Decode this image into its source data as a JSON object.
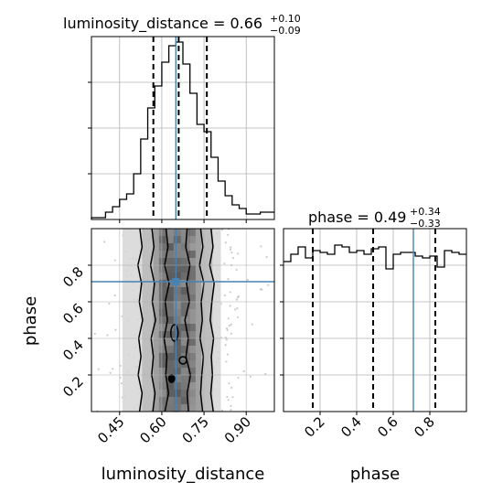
{
  "chart_data": [
    {
      "type": "histogram",
      "panel": "marginal-luminosity-distance",
      "title": {
        "main": "luminosity_distance = 0.66",
        "sup": "+0.10",
        "sub": "−0.09"
      },
      "xlim": [
        0.35,
        1.0
      ],
      "ylim": [
        0,
        1.0
      ],
      "quantiles": [
        0.57,
        0.66,
        0.76
      ],
      "truth": 0.65,
      "bin_edges": [
        0.35,
        0.375,
        0.4,
        0.425,
        0.45,
        0.475,
        0.5,
        0.525,
        0.55,
        0.575,
        0.6,
        0.625,
        0.65,
        0.675,
        0.7,
        0.725,
        0.75,
        0.775,
        0.8,
        0.825,
        0.85,
        0.875,
        0.9,
        0.925,
        0.95,
        0.975,
        1.0
      ],
      "counts": [
        0.01,
        0.01,
        0.04,
        0.07,
        0.11,
        0.14,
        0.25,
        0.44,
        0.61,
        0.73,
        0.86,
        0.95,
        0.97,
        0.85,
        0.69,
        0.52,
        0.48,
        0.34,
        0.21,
        0.13,
        0.08,
        0.06,
        0.03,
        0.03,
        0.04,
        0.04
      ]
    },
    {
      "type": "scatter",
      "panel": "joint-2d",
      "xlabel": "luminosity_distance",
      "ylabel": "phase",
      "xlim": [
        0.35,
        1.0
      ],
      "ylim": [
        0.0,
        1.0
      ],
      "xticks": [
        "0.45",
        "0.60",
        "0.75",
        "0.90"
      ],
      "yticks": [
        "0.2",
        "0.4",
        "0.6",
        "0.8"
      ],
      "truth": [
        0.65,
        0.71
      ],
      "density_columns": [
        0.47,
        0.56,
        0.61,
        0.65,
        0.7,
        0.74,
        0.8
      ],
      "contour_x": [
        [
          0.522,
          0.53,
          0.515,
          0.528,
          0.52,
          0.532,
          0.518,
          0.526,
          0.516,
          0.53,
          0.521
        ],
        [
          0.565,
          0.572,
          0.56,
          0.574,
          0.566,
          0.578,
          0.562,
          0.57,
          0.564,
          0.576,
          0.568
        ],
        [
          0.615,
          0.622,
          0.61,
          0.626,
          0.612,
          0.62,
          0.608,
          0.618,
          0.614,
          0.624,
          0.611
        ],
        [
          0.69,
          0.685,
          0.7,
          0.688,
          0.698,
          0.682,
          0.694,
          0.686,
          0.702,
          0.69,
          0.695
        ],
        [
          0.738,
          0.746,
          0.734,
          0.75,
          0.74,
          0.744,
          0.736,
          0.748,
          0.742,
          0.738,
          0.745
        ],
        [
          0.775,
          0.782,
          0.77,
          0.786,
          0.778,
          0.772,
          0.784,
          0.776,
          0.78,
          0.774,
          0.783
        ]
      ],
      "contour_y": [
        1.0,
        0.9,
        0.8,
        0.7,
        0.6,
        0.5,
        0.4,
        0.3,
        0.2,
        0.1,
        0.0
      ]
    },
    {
      "type": "histogram",
      "panel": "marginal-phase",
      "title": {
        "main": "phase = 0.49",
        "sup": "+0.34",
        "sub": "−0.33"
      },
      "xlabel": "phase",
      "xlim": [
        0.0,
        1.0
      ],
      "ylim": [
        0,
        1.0
      ],
      "xticks": [
        "0.2",
        "0.4",
        "0.6",
        "0.8"
      ],
      "quantiles": [
        0.16,
        0.49,
        0.83
      ],
      "truth": 0.71,
      "bin_edges": [
        0.0,
        0.04,
        0.08,
        0.12,
        0.16,
        0.2,
        0.24,
        0.28,
        0.32,
        0.36,
        0.4,
        0.44,
        0.48,
        0.52,
        0.56,
        0.6,
        0.64,
        0.68,
        0.72,
        0.76,
        0.8,
        0.84,
        0.88,
        0.92,
        0.96,
        1.0
      ],
      "counts": [
        0.82,
        0.86,
        0.9,
        0.84,
        0.88,
        0.87,
        0.86,
        0.91,
        0.9,
        0.87,
        0.88,
        0.86,
        0.89,
        0.9,
        0.78,
        0.86,
        0.87,
        0.87,
        0.85,
        0.84,
        0.85,
        0.79,
        0.88,
        0.87,
        0.86
      ]
    }
  ]
}
